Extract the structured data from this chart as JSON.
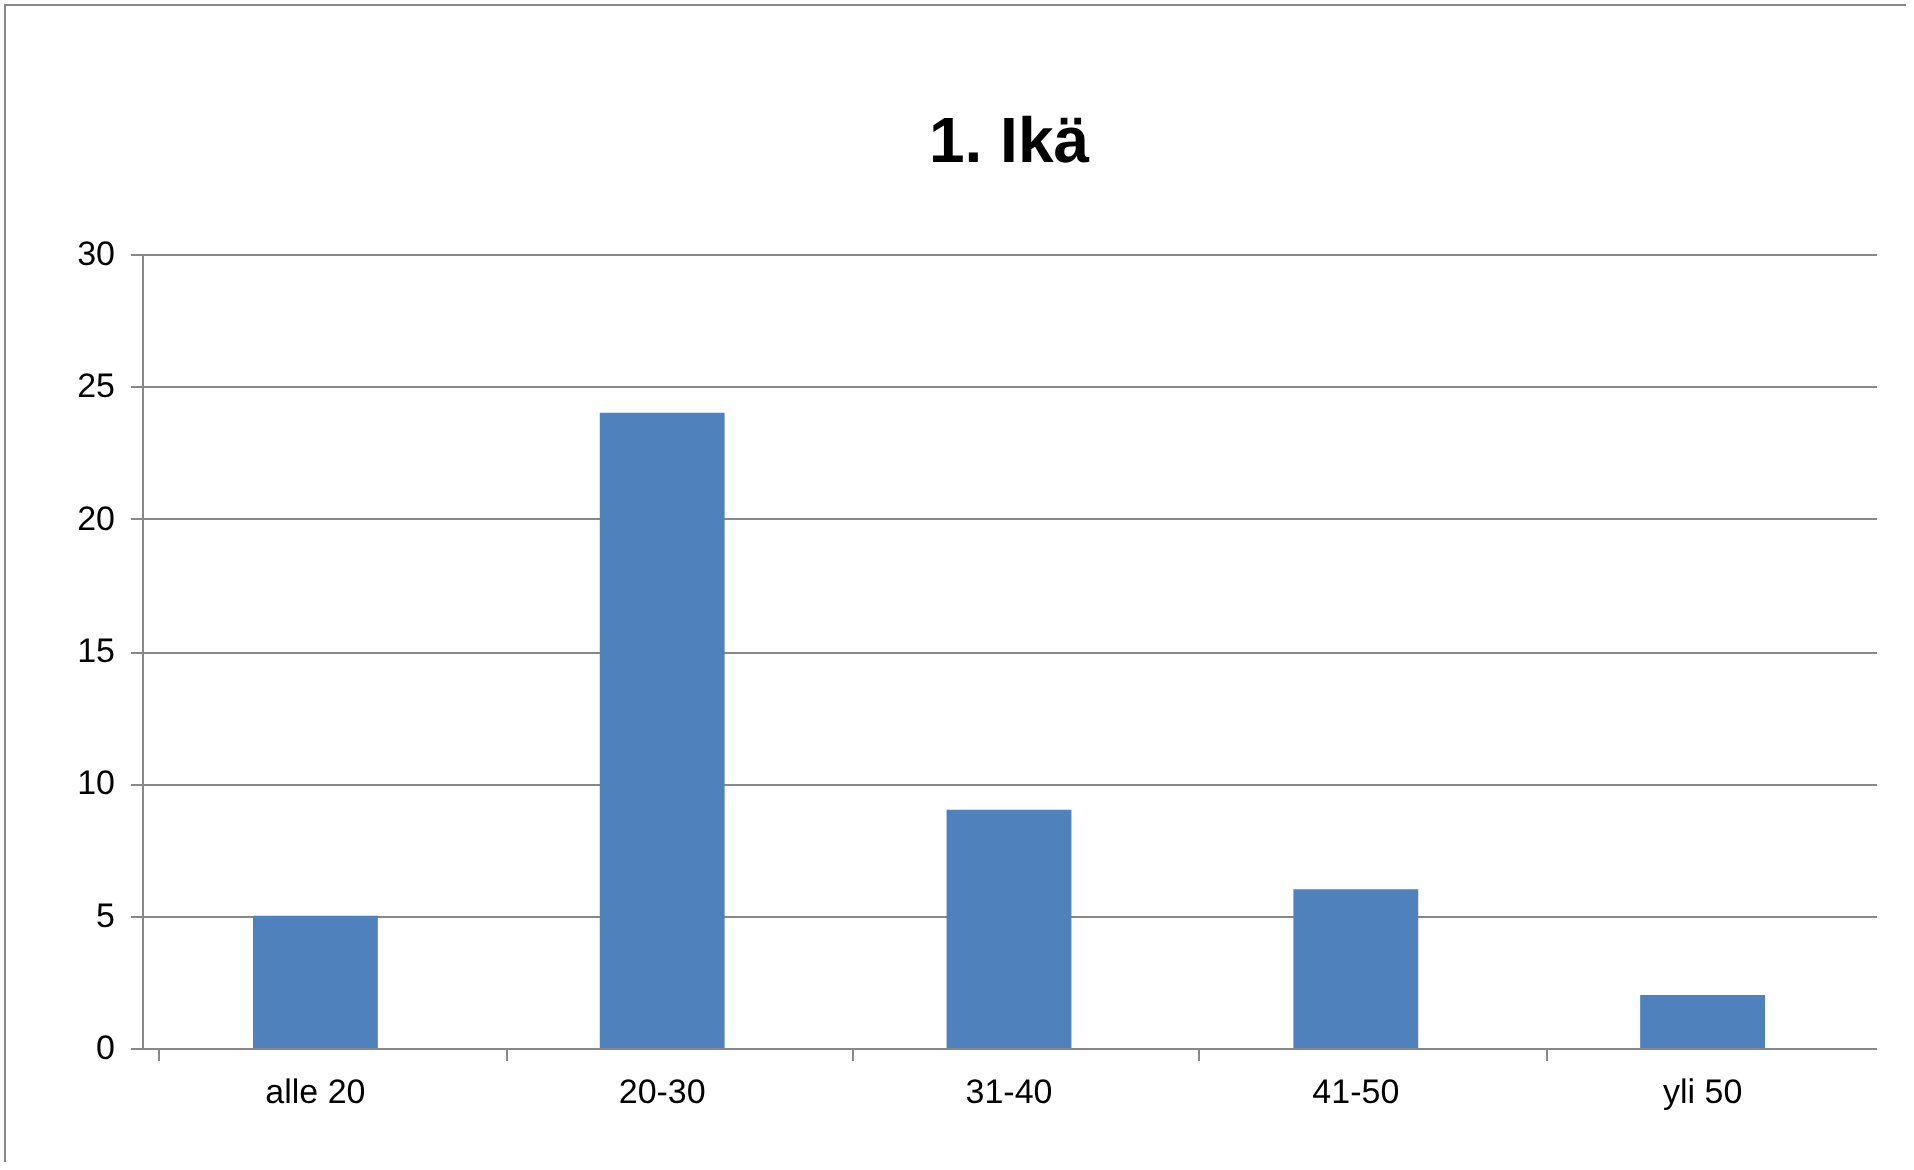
{
  "chart_data": {
    "type": "bar",
    "title": "1. Ikä",
    "categories": [
      "alle 20",
      "20-30",
      "31-40",
      "41-50",
      "yli 50"
    ],
    "values": [
      5,
      24,
      9,
      6,
      2
    ],
    "color": "#4f81bd",
    "ylim": [
      0,
      30
    ],
    "yticks": [
      0,
      5,
      10,
      15,
      20,
      25,
      30
    ],
    "grid": "y"
  }
}
